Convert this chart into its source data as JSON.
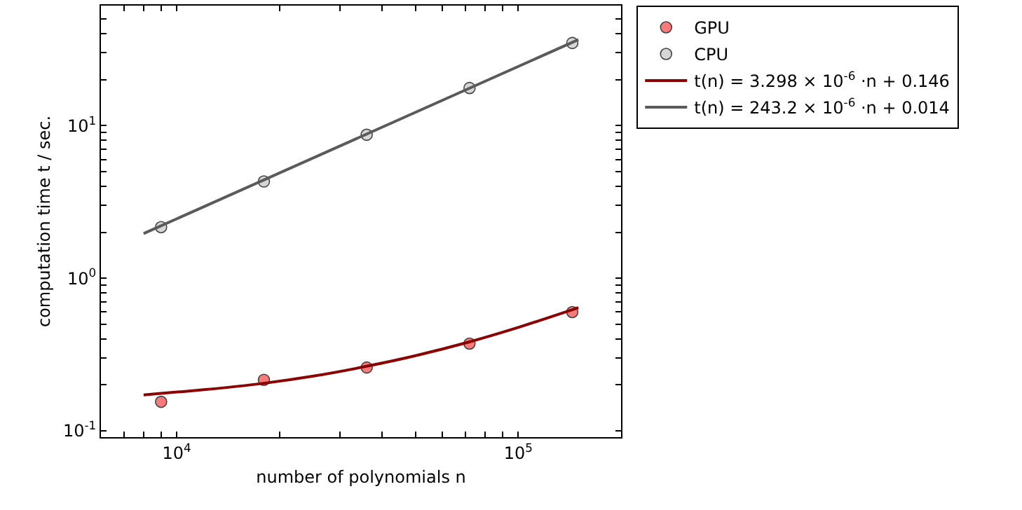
{
  "chart_data": {
    "type": "scatter",
    "xlabel": "number of polynomials n",
    "ylabel": "computation time t / sec.",
    "log": "xy",
    "grid": false,
    "legend": "top right",
    "marker": "circle",
    "xlim": [
      6000,
      200000
    ],
    "xticks": [
      {
        "value": 7000,
        "label": null
      },
      {
        "value": 8000,
        "label": null
      },
      {
        "value": 9000,
        "label": null
      },
      {
        "value": 10000,
        "label": "10$^{4}$"
      },
      {
        "value": 20000,
        "label": null
      },
      {
        "value": 30000,
        "label": null
      },
      {
        "value": 40000,
        "label": null
      },
      {
        "value": 50000,
        "label": null
      },
      {
        "value": 60000,
        "label": null
      },
      {
        "value": 70000,
        "label": null
      },
      {
        "value": 80000,
        "label": null
      },
      {
        "value": 90000,
        "label": null
      },
      {
        "value": 100000,
        "label": "10$^{5}$"
      },
      {
        "value": 200000,
        "label": null
      }
    ],
    "ylim": [
      0.091,
      61
    ],
    "yticks": [
      {
        "value": 0.1,
        "label": "10$^{-1}$"
      },
      {
        "value": 0.2,
        "label": null
      },
      {
        "value": 0.3,
        "label": null
      },
      {
        "value": 0.4,
        "label": null
      },
      {
        "value": 0.5,
        "label": null
      },
      {
        "value": 0.6,
        "label": null
      },
      {
        "value": 0.7,
        "label": null
      },
      {
        "value": 0.8,
        "label": null
      },
      {
        "value": 0.9,
        "label": null
      },
      {
        "value": 1,
        "label": "10$^{0}$"
      },
      {
        "value": 2,
        "label": null
      },
      {
        "value": 3,
        "label": null
      },
      {
        "value": 4,
        "label": null
      },
      {
        "value": 5,
        "label": null
      },
      {
        "value": 6,
        "label": null
      },
      {
        "value": 7,
        "label": null
      },
      {
        "value": 8,
        "label": null
      },
      {
        "value": 9,
        "label": null
      },
      {
        "value": 10,
        "label": "10$^{1}$"
      },
      {
        "value": 20,
        "label": null
      },
      {
        "value": 30,
        "label": null
      },
      {
        "value": 40,
        "label": null
      },
      {
        "value": 50,
        "label": null
      }
    ],
    "series": [
      {
        "name": "GPU",
        "color": "#f77b7b",
        "x": [
          9000,
          18000,
          36000,
          72000,
          144000
        ],
        "values": [
          0.155,
          0.216,
          0.26,
          0.373,
          0.6
        ]
      },
      {
        "name": "CPU",
        "color": "#d6d6d6",
        "x": [
          9000,
          18000,
          36000,
          72000,
          144000
        ],
        "values": [
          2.16,
          4.3,
          8.7,
          17.6,
          34.7
        ]
      },
      {
        "name": "t(n) = 3.298 × 10$^{-6}$ ·n + 0.146",
        "type": "line",
        "color": "#8b0000",
        "line_style": "solid",
        "marker": "none",
        "x": [
          8000,
          9000,
          12000,
          18000,
          25000,
          36000,
          50000,
          72000,
          100000,
          144000,
          150000
        ],
        "values": [
          0.172,
          0.176,
          0.186,
          0.205,
          0.228,
          0.265,
          0.311,
          0.383,
          0.476,
          0.621,
          0.641
        ]
      },
      {
        "name": "t(n) = 243.2 × 10$^{-6}$ ·n + 0.014",
        "type": "line",
        "color": "#5a5a5a",
        "line_style": "solid",
        "marker": "none",
        "x": [
          8000,
          150000
        ],
        "values": [
          1.96,
          36.5
        ]
      }
    ]
  }
}
